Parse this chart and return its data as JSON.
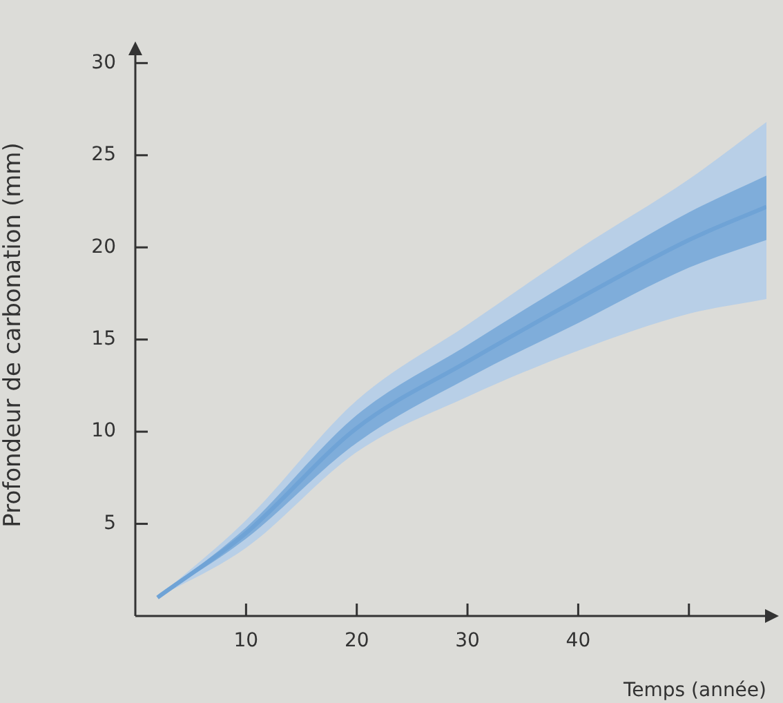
{
  "chart_data": {
    "type": "line",
    "xlabel": "Temps (année)",
    "ylabel": "Profondeur de carbonation (mm)",
    "x": [
      2,
      10,
      20,
      30,
      40,
      50,
      57
    ],
    "series": [
      {
        "color": "#aecbea",
        "values": [
          null,
          null,
          null,
          null,
          null,
          null,
          null
        ],
        "lower": [
          1,
          3.7,
          8.9,
          11.9,
          14.4,
          16.4,
          17.2
        ],
        "upper": [
          1,
          5.2,
          11.7,
          15.8,
          19.9,
          23.7,
          26.8
        ]
      },
      {
        "color": "#6fa3d6",
        "values": [
          1,
          4.5,
          10.2,
          13.8,
          17.2,
          20.4,
          22.2
        ],
        "lower": [
          1,
          4.2,
          9.4,
          12.9,
          15.9,
          18.9,
          20.4
        ],
        "upper": [
          1,
          4.8,
          10.9,
          14.7,
          18.4,
          21.9,
          23.9
        ]
      }
    ],
    "xlim": [
      0,
      57
    ],
    "xticks": [
      10,
      20,
      30,
      40,
      {
        "value": 50,
        "label": null
      }
    ],
    "ylim": [
      0,
      30.5
    ],
    "yticks": [
      5,
      10,
      15,
      20,
      25,
      30
    ],
    "grid": false,
    "legend": false,
    "marker": "none",
    "line_style": "solid"
  }
}
